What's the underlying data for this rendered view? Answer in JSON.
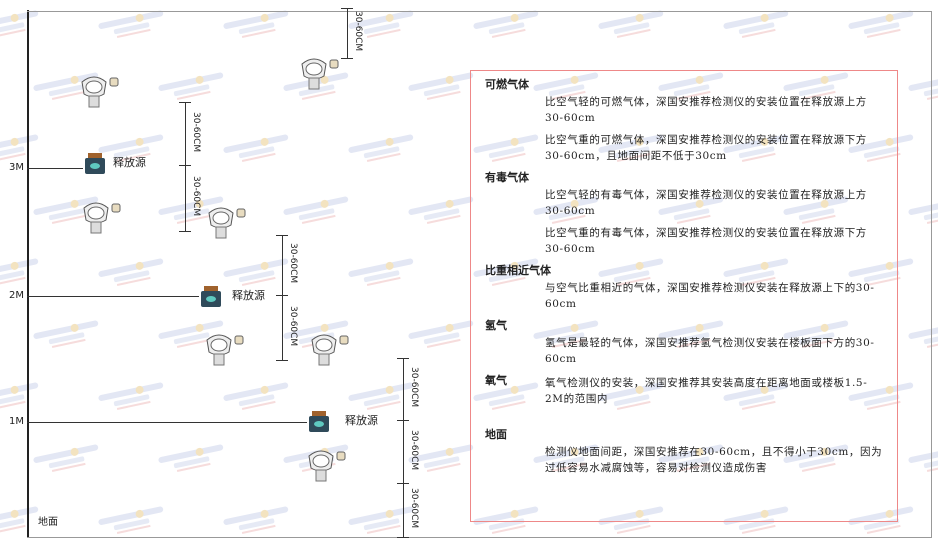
{
  "levels": {
    "l3": "3M",
    "l2": "2M",
    "l1": "1M",
    "ground": "地面"
  },
  "source_label": "释放源",
  "dimension_label": "30-60CM",
  "watermark": "SINGOAN 深国安",
  "panel": {
    "combustible": {
      "title": "可燃气体",
      "p1": "比空气轻的可燃气体，深国安推荐检测仪的安装位置在释放源上方30-60cm",
      "p2": "比空气重的可燃气体，深国安推荐检测仪的安装位置在释放源下方30-60cm，且地面间距不低于30cm"
    },
    "toxic": {
      "title": "有毒气体",
      "p1": "比空气轻的有毒气体，深国安推荐检测仪的安装位置在释放源上方30-60cm",
      "p2": "比空气重的有毒气体，深国安推荐检测仪的安装位置在释放源下方30-60cm"
    },
    "similar": {
      "title": "比重相近气体",
      "p1": "与空气比重相近的气体，深国安推荐检测仪安装在释放源上下的30-60cm"
    },
    "hydrogen": {
      "title": "氢气",
      "p1": "氢气是最轻的气体，深国安推荐氢气检测仪安装在楼板面下方的30-60cm"
    },
    "oxygen": {
      "title": "氧气",
      "p1": "氧气检测仪的安装，深国安推荐其安装高度在距离地面或楼板1.5-2M的范围内"
    },
    "ground": {
      "title": "地面",
      "p1": "检测仪地面间距，深国安推荐在30-60cm，且不得小于30cm，因为过低容易水减腐蚀等，容易对检测仪造成伤害"
    }
  }
}
